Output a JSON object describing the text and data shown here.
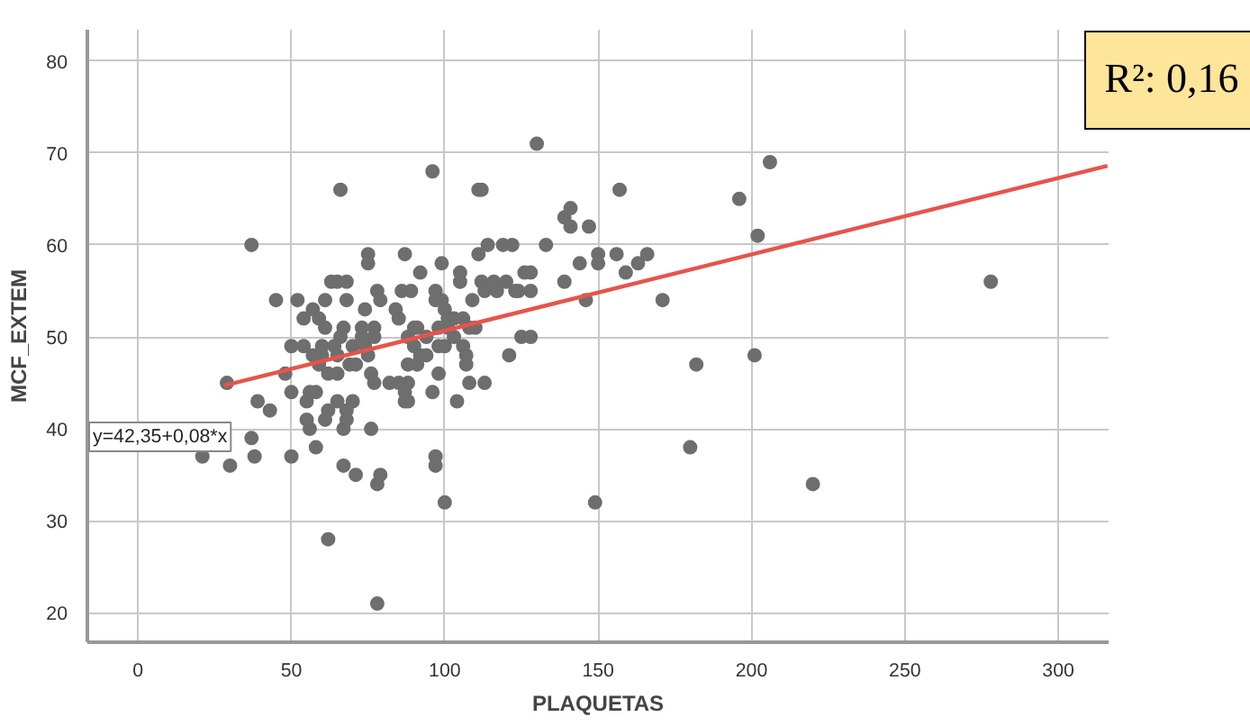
{
  "chart_data": {
    "type": "scatter",
    "xlabel": "PLAQUETAS",
    "ylabel": "MCF_EXTEM",
    "xlim": [
      -16.5,
      316.4
    ],
    "ylim": [
      16.8,
      83.4
    ],
    "xticks": [
      0,
      50,
      100,
      150,
      200,
      250,
      300
    ],
    "yticks": [
      20,
      30,
      40,
      50,
      60,
      70,
      80
    ],
    "grid": true,
    "annotations": [
      "y=42,35+0,08*x",
      "R²: 0,16"
    ],
    "series": [
      {
        "color": "#6e6e6e",
        "marker": "circle",
        "x": [
          21,
          29,
          30,
          37,
          37,
          38,
          39,
          43,
          45,
          48,
          50,
          50,
          50,
          52,
          54,
          54,
          55,
          55,
          56,
          56,
          57,
          57,
          58,
          58,
          59,
          59,
          60,
          60,
          61,
          61,
          61,
          62,
          62,
          62,
          63,
          64,
          65,
          65,
          65,
          65,
          66,
          66,
          67,
          67,
          67,
          68,
          68,
          68,
          68,
          69,
          70,
          70,
          71,
          71,
          73,
          73,
          74,
          74,
          75,
          75,
          75,
          76,
          76,
          77,
          77,
          77,
          78,
          78,
          78,
          79,
          79,
          82,
          84,
          85,
          85,
          86,
          87,
          87,
          87,
          88,
          88,
          88,
          88,
          89,
          90,
          90,
          91,
          91,
          92,
          92,
          94,
          94,
          96,
          96,
          97,
          97,
          97,
          97,
          98,
          98,
          98,
          99,
          99,
          100,
          100,
          100,
          101,
          101,
          103,
          103,
          104,
          105,
          105,
          106,
          106,
          107,
          107,
          108,
          108,
          109,
          110,
          111,
          111,
          112,
          112,
          113,
          113,
          114,
          116,
          117,
          119,
          120,
          121,
          122,
          123,
          124,
          125,
          126,
          128,
          128,
          128,
          130,
          133,
          139,
          139,
          141,
          141,
          144,
          146,
          147,
          150,
          150,
          149,
          156,
          157,
          159,
          163,
          166,
          171,
          180,
          182,
          196,
          201,
          202,
          206,
          220,
          278
        ],
        "values": [
          37,
          45,
          36,
          39,
          60,
          37,
          43,
          42,
          54,
          46,
          49,
          44,
          37,
          54,
          52,
          49,
          43,
          41,
          44,
          40,
          53,
          48,
          44,
          38,
          52,
          47,
          49,
          48,
          54,
          51,
          41,
          46,
          42,
          28,
          56,
          49,
          56,
          48,
          46,
          43,
          66,
          50,
          36,
          51,
          40,
          56,
          54,
          41,
          42,
          47,
          49,
          43,
          47,
          35,
          51,
          50,
          53,
          49,
          59,
          58,
          48,
          40,
          46,
          45,
          51,
          50,
          55,
          34,
          21,
          54,
          35,
          45,
          53,
          52,
          45,
          55,
          59,
          44,
          43,
          43,
          47,
          45,
          50,
          55,
          51,
          49,
          51,
          47,
          57,
          48,
          50,
          48,
          44,
          68,
          55,
          54,
          37,
          36,
          51,
          49,
          46,
          58,
          54,
          53,
          49,
          32,
          52,
          51,
          52,
          50,
          43,
          57,
          56,
          49,
          52,
          47,
          48,
          51,
          45,
          54,
          51,
          59,
          66,
          66,
          56,
          55,
          45,
          60,
          56,
          55,
          60,
          56,
          48,
          60,
          55,
          55,
          50,
          57,
          57,
          55,
          50,
          71,
          60,
          63,
          56,
          64,
          62,
          58,
          54,
          62,
          59,
          58,
          32,
          59,
          66,
          57,
          58,
          59,
          54,
          38,
          47,
          65,
          48,
          61,
          69,
          34,
          56
        ]
      },
      {
        "type": "line",
        "color": "#e8534b",
        "x": [
          28,
          316
        ],
        "values": [
          44.7,
          68.6
        ]
      }
    ]
  }
}
